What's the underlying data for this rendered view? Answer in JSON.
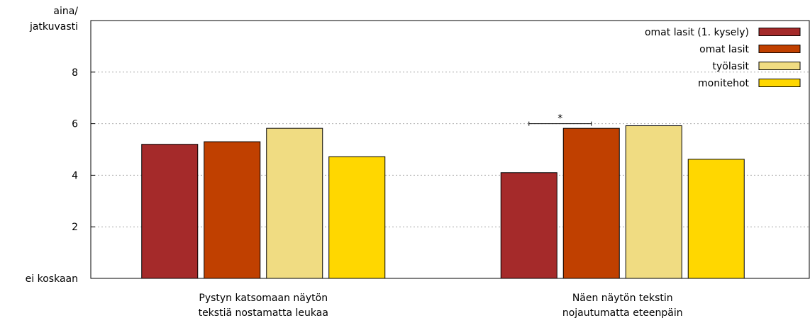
{
  "chart_data": {
    "type": "bar",
    "title": "",
    "xlabel": "",
    "ylabel": "",
    "ylim": [
      0,
      10
    ],
    "yticks": [
      2,
      4,
      6,
      8
    ],
    "y_min_label": "ei koskaan",
    "y_max_label_lines": [
      "aina/",
      "jatkuvasti"
    ],
    "grid": true,
    "legend_position": "top-right",
    "categories": [
      [
        "Pystyn katsomaan näytön",
        "tekstiä nostamatta leukaa"
      ],
      [
        "Näen näytön tekstin",
        "nojautumatta eteenpäin"
      ]
    ],
    "series": [
      {
        "name": "omat lasit (1. kysely)",
        "color": "#a52a2a",
        "values": [
          5.2,
          4.1
        ]
      },
      {
        "name": "omat lasit",
        "color": "#c04000",
        "values": [
          5.3,
          5.82
        ]
      },
      {
        "name": "työlasit",
        "color": "#f0dc82",
        "values": [
          5.82,
          5.92
        ]
      },
      {
        "name": "monitehot",
        "color": "#ffd700",
        "values": [
          4.72,
          4.62
        ]
      }
    ],
    "annotations": [
      {
        "text": "*",
        "category_index": 1,
        "from_series": 0,
        "to_series": 1,
        "y": 6.0
      }
    ]
  }
}
